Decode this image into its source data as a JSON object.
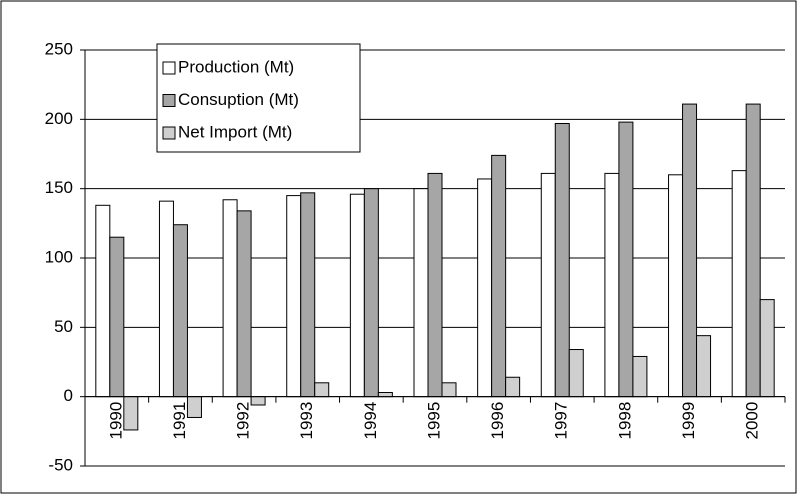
{
  "chart_data": {
    "type": "bar",
    "categories": [
      "1990",
      "1991",
      "1992",
      "1993",
      "1994",
      "1995",
      "1996",
      "1997",
      "1998",
      "1999",
      "2000"
    ],
    "series": [
      {
        "name": "Production (Mt)",
        "color": "#ffffff",
        "values": [
          138,
          141,
          142,
          145,
          146,
          150,
          157,
          161,
          161,
          160,
          163
        ]
      },
      {
        "name": "Consuption (Mt)",
        "color": "#a6a6a6",
        "values": [
          115,
          124,
          134,
          147,
          150,
          161,
          174,
          197,
          198,
          211,
          211
        ]
      },
      {
        "name": "Net Import (Mt)",
        "color": "#cfcfcf",
        "values": [
          -24,
          -15,
          -6,
          10,
          3,
          10,
          14,
          34,
          29,
          44,
          70
        ]
      }
    ],
    "ylim": [
      -50,
      250
    ],
    "yticks": [
      -50,
      0,
      50,
      100,
      150,
      200,
      250
    ],
    "grid": true,
    "legend": "upper left"
  }
}
